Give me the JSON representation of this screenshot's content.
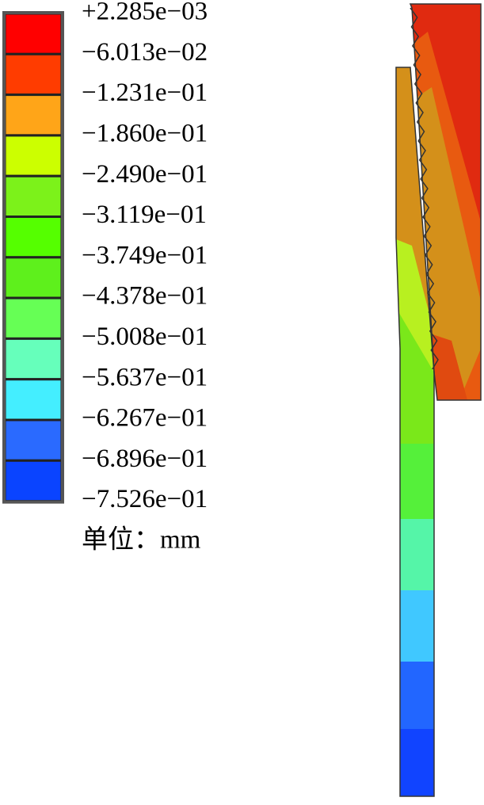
{
  "legend": {
    "labels": [
      "+2.285e−03",
      "−6.013e−02",
      "−1.231e−01",
      "−1.860e−01",
      "−2.490e−01",
      "−3.119e−01",
      "−3.749e−01",
      "−4.378e−01",
      "−5.008e−01",
      "−5.637e−01",
      "−6.267e−01",
      "−6.896e−01",
      "−7.526e−01"
    ],
    "colors": [
      "#ff0000",
      "#ff3c00",
      "#ffa518",
      "#ccff00",
      "#7cf21a",
      "#55ff00",
      "#5ef01c",
      "#66ff55",
      "#66ffbb",
      "#44eeff",
      "#2a6aff",
      "#0a44ff"
    ],
    "unit": "单位：mm"
  }
}
